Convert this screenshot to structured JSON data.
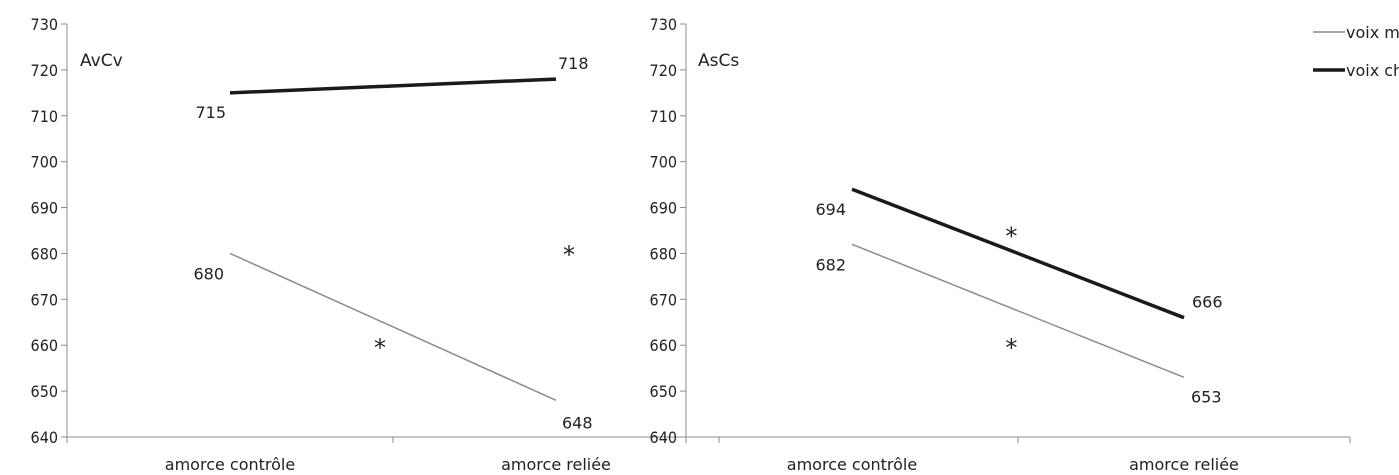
{
  "legend": {
    "items": [
      {
        "label": "voix modale",
        "color": "#8c8c8c",
        "width": 1.5
      },
      {
        "label": "voix chuchotée",
        "color": "#1a1a1a",
        "width": 3.5
      }
    ]
  },
  "chart_data": [
    {
      "type": "line",
      "title": "AvCv",
      "categories": [
        "amorce contrôle",
        "amorce reliée"
      ],
      "ylim": [
        640,
        730
      ],
      "yticks": [
        640,
        650,
        660,
        670,
        680,
        690,
        700,
        710,
        720,
        730
      ],
      "series": [
        {
          "name": "voix modale",
          "values": [
            680,
            648
          ],
          "labels": [
            "680",
            "648"
          ]
        },
        {
          "name": "voix chuchotée",
          "values": [
            715,
            718
          ],
          "labels": [
            "715",
            "718"
          ]
        }
      ],
      "annotations": [
        "*",
        "*"
      ]
    },
    {
      "type": "line",
      "title": "AsCs",
      "categories": [
        "amorce contrôle",
        "amorce reliée"
      ],
      "ylim": [
        640,
        730
      ],
      "yticks": [
        640,
        650,
        660,
        670,
        680,
        690,
        700,
        710,
        720,
        730
      ],
      "series": [
        {
          "name": "voix modale",
          "values": [
            682,
            653
          ],
          "labels": [
            "682",
            "653"
          ]
        },
        {
          "name": "voix chuchotée",
          "values": [
            694,
            666
          ],
          "labels": [
            "694",
            "666"
          ]
        }
      ],
      "annotations": [
        "*",
        "*"
      ]
    }
  ]
}
